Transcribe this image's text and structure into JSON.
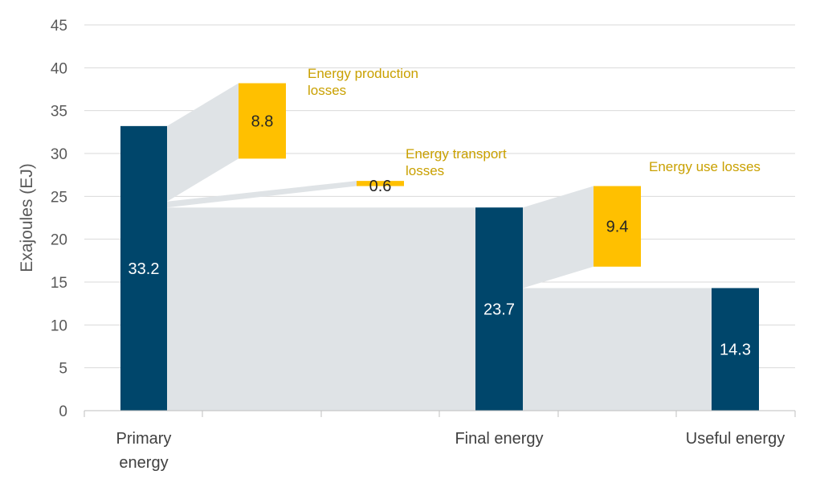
{
  "chart_data": {
    "type": "bar",
    "ylabel": "Exajoules (EJ)",
    "ylim": [
      0,
      45
    ],
    "yticks": [
      0,
      5,
      10,
      15,
      20,
      25,
      30,
      35,
      40,
      45
    ],
    "grid": true,
    "colors": {
      "bar": "#00466b",
      "loss": "#ffc000",
      "flow": "#dfe3e6",
      "annotation": "#c9a000"
    },
    "bars": [
      {
        "name": "primary",
        "label": [
          "Primary",
          "energy"
        ],
        "value": 33.2,
        "value_label": "33.2"
      },
      {
        "name": "final",
        "label": [
          "Final energy"
        ],
        "value": 23.7,
        "value_label": "23.7"
      },
      {
        "name": "useful",
        "label": [
          "Useful energy"
        ],
        "value": 14.3,
        "value_label": "14.3"
      }
    ],
    "losses": [
      {
        "name": "production",
        "value": 8.8,
        "value_label": "8.8",
        "annotation": [
          "Energy production",
          "losses"
        ],
        "from": 33.2,
        "bottom": 29.4,
        "top": 38.2
      },
      {
        "name": "transport",
        "value": 0.6,
        "value_label": "0.6",
        "annotation": [
          "Energy transport",
          "losses"
        ],
        "from": 24.4,
        "bottom": 26.2,
        "top": 26.8
      },
      {
        "name": "use",
        "value": 9.4,
        "value_label": "9.4",
        "annotation": [
          "Energy use losses"
        ],
        "from": 23.7,
        "bottom": 16.8,
        "top": 26.2
      }
    ]
  }
}
